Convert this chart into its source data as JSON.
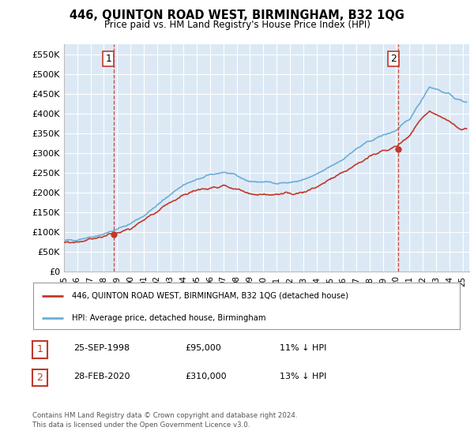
{
  "title": "446, QUINTON ROAD WEST, BIRMINGHAM, B32 1QG",
  "subtitle": "Price paid vs. HM Land Registry's House Price Index (HPI)",
  "ylim": [
    0,
    575000
  ],
  "yticks": [
    0,
    50000,
    100000,
    150000,
    200000,
    250000,
    300000,
    350000,
    400000,
    450000,
    500000,
    550000
  ],
  "ytick_labels": [
    "£0",
    "£50K",
    "£100K",
    "£150K",
    "£200K",
    "£250K",
    "£300K",
    "£350K",
    "£400K",
    "£450K",
    "£500K",
    "£550K"
  ],
  "bg_color": "#ffffff",
  "plot_bg_color": "#dce9f5",
  "grid_color": "#ffffff",
  "sale1_date_num": 1998.73,
  "sale1_price": 95000,
  "sale2_date_num": 2020.16,
  "sale2_price": 310000,
  "sale1_label": "1",
  "sale2_label": "2",
  "legend_line1": "446, QUINTON ROAD WEST, BIRMINGHAM, B32 1QG (detached house)",
  "legend_line2": "HPI: Average price, detached house, Birmingham",
  "table_row1": [
    "1",
    "25-SEP-1998",
    "£95,000",
    "11% ↓ HPI"
  ],
  "table_row2": [
    "2",
    "28-FEB-2020",
    "£310,000",
    "13% ↓ HPI"
  ],
  "footer": "Contains HM Land Registry data © Crown copyright and database right 2024.\nThis data is licensed under the Open Government Licence v3.0.",
  "hpi_color": "#6aaed6",
  "price_color": "#c0392b",
  "vline_color": "#c0392b",
  "marker_color": "#c0392b"
}
